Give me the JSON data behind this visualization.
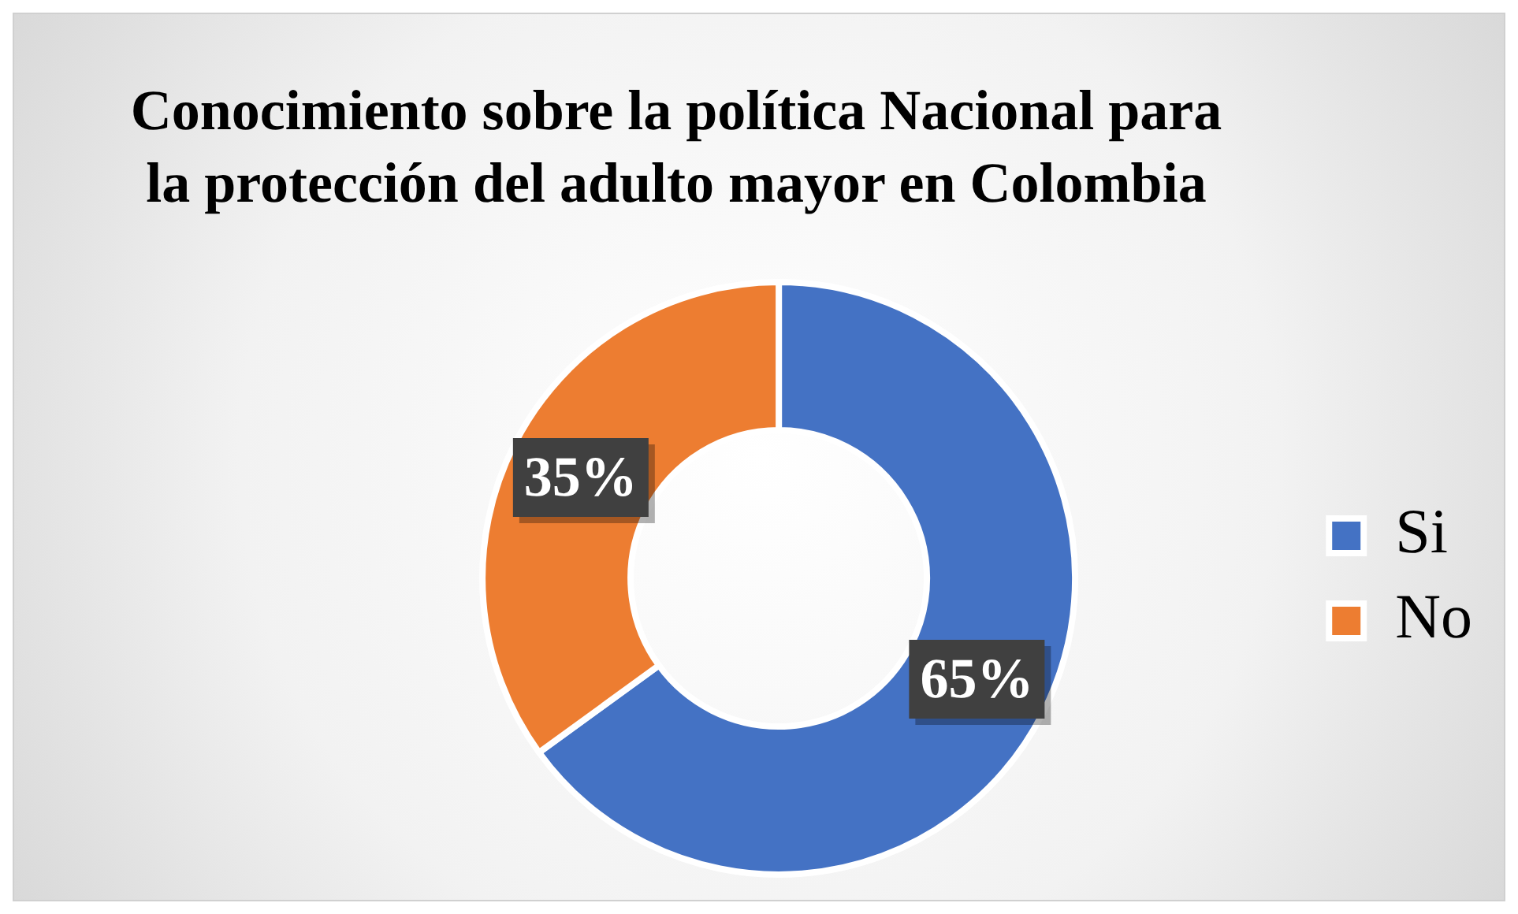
{
  "chart_data": {
    "type": "donut",
    "title": "Conocimiento sobre la política Nacional para la protección del adulto mayor en Colombia",
    "categories": [
      "Si",
      "No"
    ],
    "values": [
      65,
      35
    ],
    "colors": [
      "#4472c4",
      "#ed7d31"
    ],
    "value_labels": [
      "65%",
      "35%"
    ],
    "legend": "right"
  }
}
